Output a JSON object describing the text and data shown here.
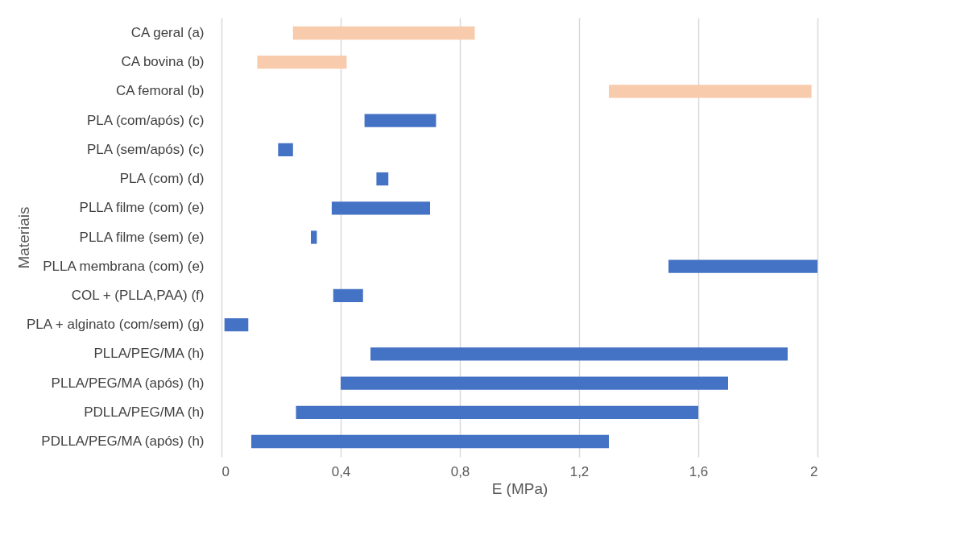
{
  "chart_data": {
    "type": "bar",
    "orientation": "horizontal",
    "xlabel": "E (MPa)",
    "ylabel": "Materiais",
    "categories": [
      "CA geral (a)",
      "CA bovina (b)",
      "CA femoral (b)",
      "PLA (com/após) (c)",
      "PLA (sem/após) (c)",
      "PLA (com) (d)",
      "PLLA filme (com) (e)",
      "PLLA filme (sem) (e)",
      "PLLA membrana (com) (e)",
      "COL + (PLLA,PAA) (f)",
      "PLA + alginato (com/sem) (g)",
      "PLLA/PEG/MA (h)",
      "PLLA/PEG/MA (após) (h)",
      "PDLLA/PEG/MA (h)",
      "PDLLA/PEG/MA (após) (h)"
    ],
    "base": [
      0.24,
      0.12,
      1.3,
      0.48,
      0.19,
      0.52,
      0.37,
      0.3,
      1.5,
      0.375,
      0.01,
      0.5,
      0.4,
      0.25,
      0.1
    ],
    "values": [
      0.61,
      0.3,
      0.68,
      0.24,
      0.05,
      0.04,
      0.33,
      0.02,
      0.5,
      0.1,
      0.08,
      1.4,
      1.3,
      1.35,
      1.2
    ],
    "colors": [
      "#f8cbad",
      "#f8cbad",
      "#f8cbad",
      "#4472c4",
      "#4472c4",
      "#4472c4",
      "#4472c4",
      "#4472c4",
      "#4472c4",
      "#4472c4",
      "#4472c4",
      "#4472c4",
      "#4472c4",
      "#4472c4",
      "#4472c4"
    ],
    "xlim": [
      0,
      2
    ],
    "xticks": [
      0,
      {
        "value": 0.4,
        "label": "0,4"
      },
      {
        "value": 0.8,
        "label": "0,8"
      },
      {
        "value": 1.2,
        "label": "1,2"
      },
      {
        "value": 1.6,
        "label": "1,6"
      },
      2
    ],
    "grid": "x"
  }
}
